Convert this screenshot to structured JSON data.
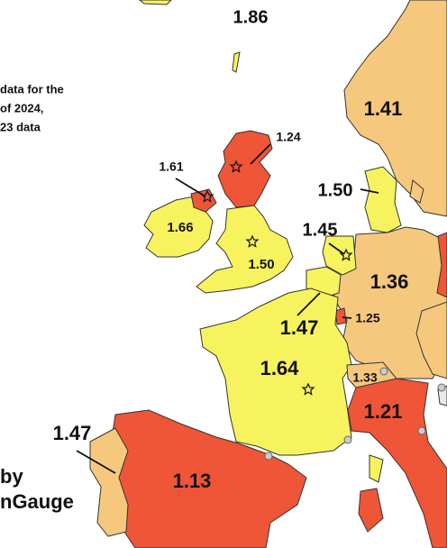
{
  "note": {
    "lines": [
      "data for the",
      "of 2024,",
      "23 data"
    ]
  },
  "credit": {
    "lines": [
      "by",
      "nGauge"
    ]
  },
  "labels": [
    "1.86",
    "1.41",
    "1.24",
    "1.61",
    "1.66",
    "1.50",
    "1.50",
    "1.45",
    "1.36",
    "1.25",
    "1.47",
    "1.64",
    "1.33",
    "1.21",
    "1.47",
    "1.13"
  ]
}
